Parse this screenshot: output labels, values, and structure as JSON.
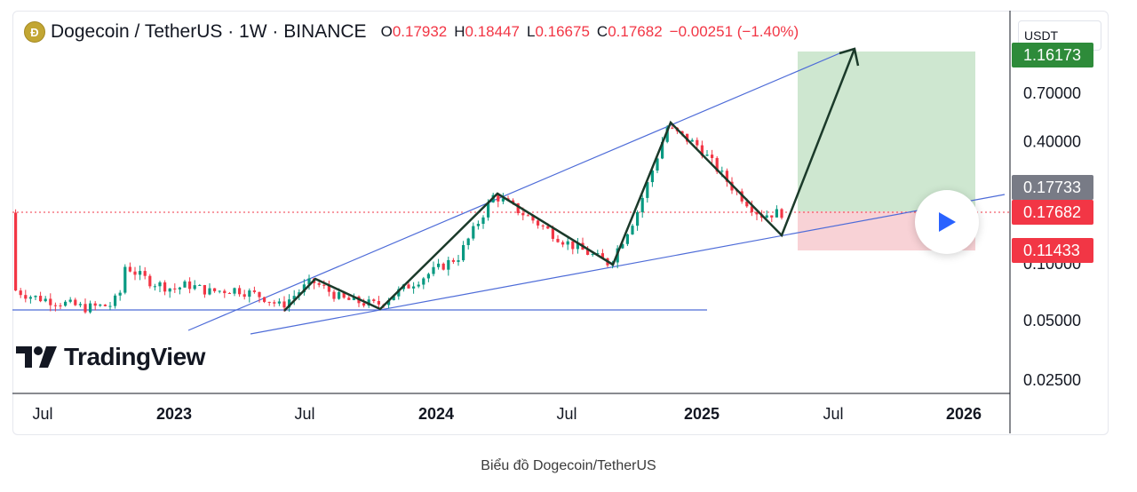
{
  "header": {
    "symbol_title": "Dogecoin / TetherUS · 1W · BINANCE",
    "ohlc": [
      {
        "key": "O",
        "value": "0.17932"
      },
      {
        "key": "H",
        "value": "0.18447"
      },
      {
        "key": "L",
        "value": "0.16675"
      },
      {
        "key": "C",
        "value": "0.17682"
      }
    ],
    "change": "−0.00251 (−1.40%)"
  },
  "quote_currency": "USDT",
  "logo_text": "TradingView",
  "caption": "Biểu đồ Dogecoin/TetherUS",
  "colors": {
    "up": "#089981",
    "down": "#f23645",
    "trendline": "#4e6cd8",
    "pattern": "#1b3a2a",
    "profit_zone": "#c9e4cb",
    "loss_zone": "#f7cdd2"
  },
  "chart_data": {
    "type": "candlestick",
    "scale": "log",
    "ylim": [
      0.025,
      1.2
    ],
    "y_ticks": [
      "0.70000",
      "0.40000",
      "0.05000",
      "0.02500"
    ],
    "x_ticks": [
      "Jul",
      "2023",
      "Jul",
      "2024",
      "Jul",
      "2025",
      "Jul",
      "2026"
    ],
    "price_labels": [
      {
        "value": "1.16173",
        "role": "target",
        "color": "#2e8b3a"
      },
      {
        "value": "0.17733",
        "role": "entry",
        "color": "#787b86"
      },
      {
        "value": "0.17682",
        "role": "last",
        "color": "#f23645"
      },
      {
        "value": "0.11433",
        "role": "stop",
        "color": "#f23645"
      },
      {
        "value": "0.10000",
        "role": "tick",
        "color": "#131722"
      }
    ],
    "pattern_points": [
      {
        "date": "2023-06",
        "price": 0.058
      },
      {
        "date": "2023-08",
        "price": 0.08
      },
      {
        "date": "2023-10",
        "price": 0.059
      },
      {
        "date": "2024-03",
        "price": 0.22
      },
      {
        "date": "2024-08",
        "price": 0.095
      },
      {
        "date": "2024-12",
        "price": 0.48
      },
      {
        "date": "2025-04",
        "price": 0.13
      },
      {
        "date": "2025-07",
        "price": 1.16
      }
    ],
    "position": {
      "entry": 0.17733,
      "target": 1.16173,
      "stop": 0.11433
    }
  }
}
